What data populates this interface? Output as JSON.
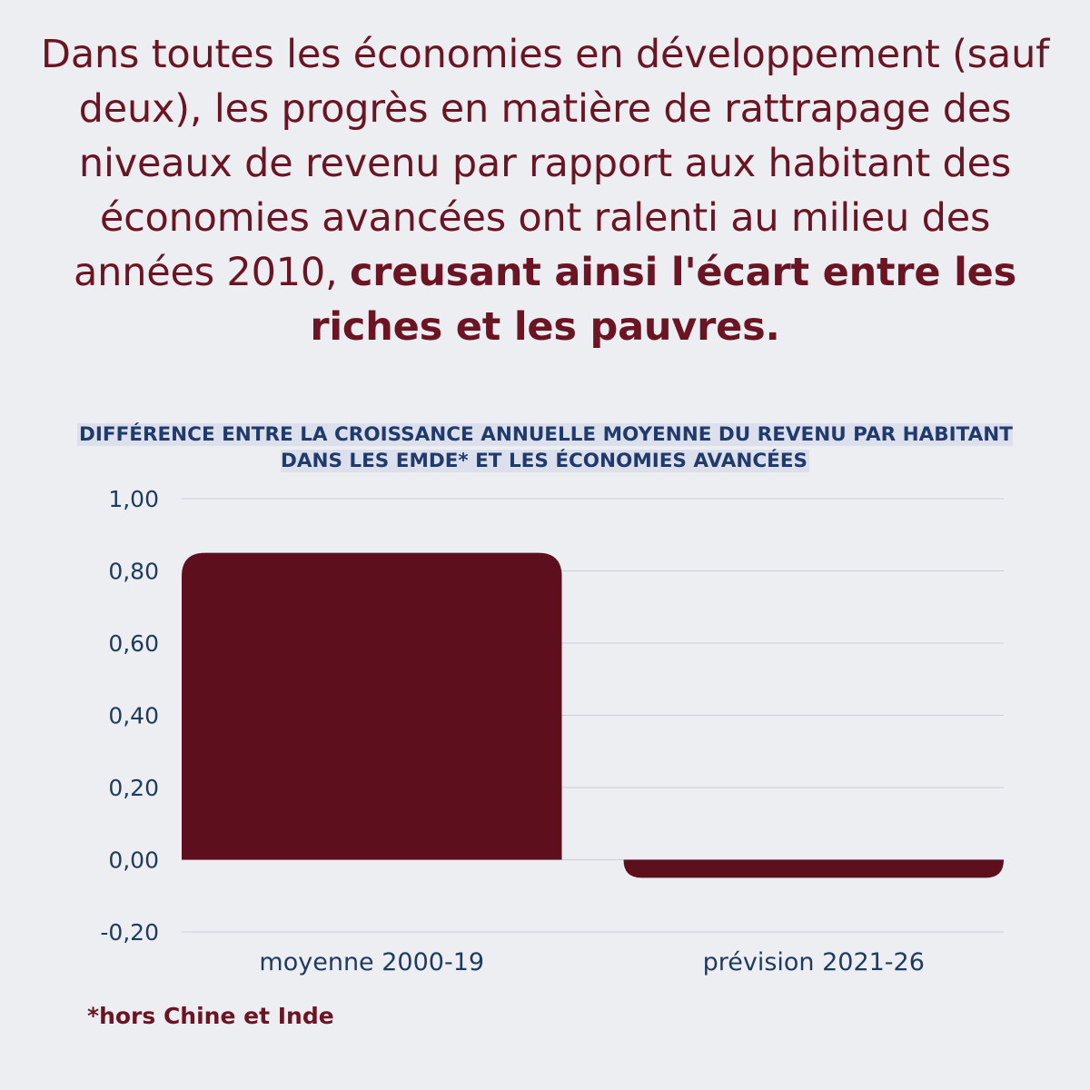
{
  "headline": {
    "part1": "Dans toutes les économies en développement (sauf deux), les progrès en matière de rattrapage des niveaux de revenu par rapport aux habitant des économies avancées ont ralenti au milieu des années 2010, ",
    "part2": "creusant ainsi l'écart entre les riches et les pauvres."
  },
  "footnote": "*hors Chine et Inde",
  "colors": {
    "bar": "#5e0f1e",
    "headline": "#6b1524",
    "chart_title": "#1f3a6b",
    "axis_text": "#1f3a5f",
    "gridline": "#c8cfdc",
    "background": "#eceef2"
  },
  "chart_data": {
    "type": "bar",
    "title": "DIFFÉRENCE ENTRE LA CROISSANCE ANNUELLE MOYENNE DU REVENU PAR HABITANT DANS LES EMDE* ET LES ÉCONOMIES AVANCÉES",
    "categories": [
      "moyenne 2000-19",
      "prévision 2021-26"
    ],
    "values": [
      0.85,
      -0.05
    ],
    "ylim": [
      -0.2,
      1.0
    ],
    "yticks": [
      1.0,
      0.8,
      0.6,
      0.4,
      0.2,
      0.0,
      -0.2
    ],
    "ytick_labels": [
      "1,00",
      "0,80",
      "0,60",
      "0,40",
      "0,20",
      "0,00",
      "-0,20"
    ],
    "xlabel": "",
    "ylabel": "",
    "grid": true,
    "legend": "none"
  }
}
